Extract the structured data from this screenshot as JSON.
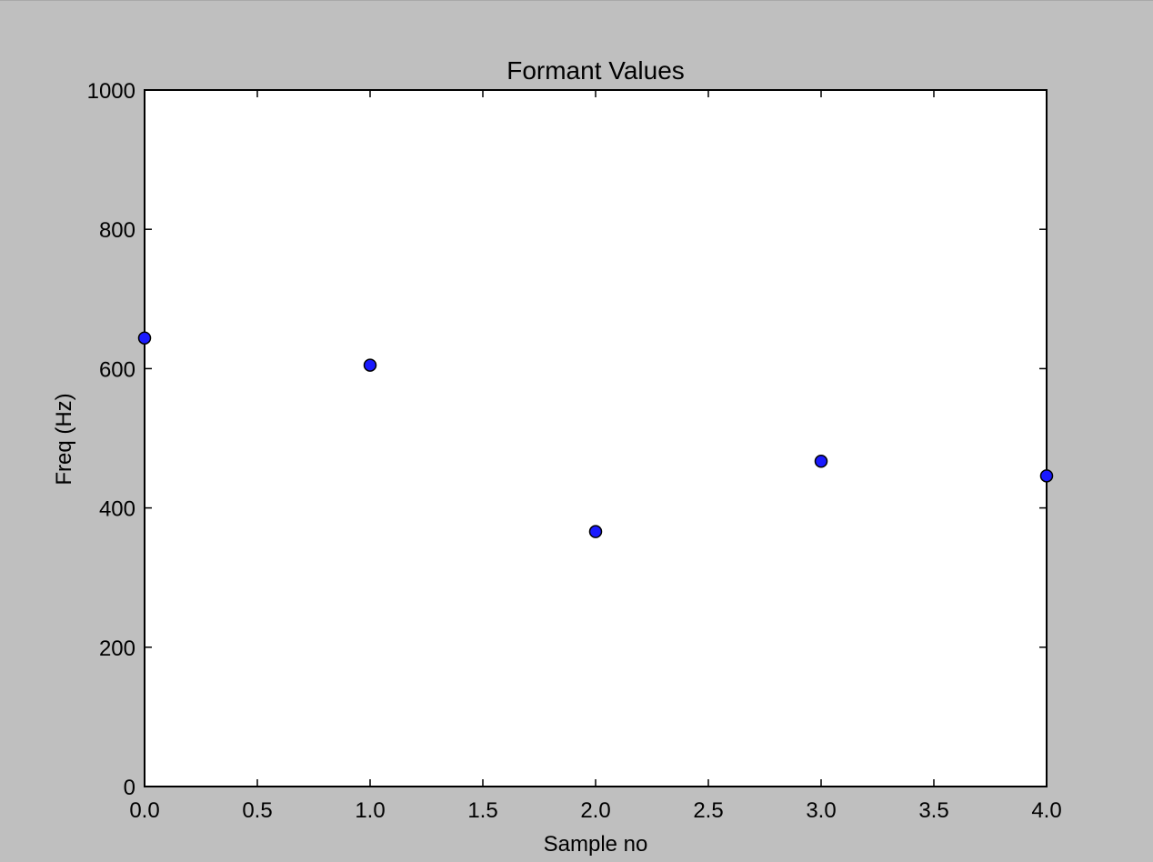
{
  "chart_data": {
    "type": "scatter",
    "title": "Formant Values",
    "xlabel": "Sample no",
    "ylabel": "Freq (Hz)",
    "xlim": [
      0.0,
      4.0
    ],
    "ylim": [
      0,
      1000
    ],
    "xticks": [
      "0.0",
      "0.5",
      "1.0",
      "1.5",
      "2.0",
      "2.5",
      "3.0",
      "3.5",
      "4.0"
    ],
    "xtick_values": [
      0.0,
      0.5,
      1.0,
      1.5,
      2.0,
      2.5,
      3.0,
      3.5,
      4.0
    ],
    "yticks": [
      "0",
      "200",
      "400",
      "600",
      "800",
      "1000"
    ],
    "ytick_values": [
      0,
      200,
      400,
      600,
      800,
      1000
    ],
    "grid": false,
    "series": [
      {
        "x": [
          0,
          1,
          2,
          3,
          4
        ],
        "y": [
          644,
          605,
          366,
          467,
          446
        ],
        "color": "#1a1aff",
        "edgecolor": "#000000",
        "marker": "circle"
      }
    ]
  },
  "colors": {
    "figure_background": "#bfbfbf",
    "axes_background": "#ffffff"
  }
}
